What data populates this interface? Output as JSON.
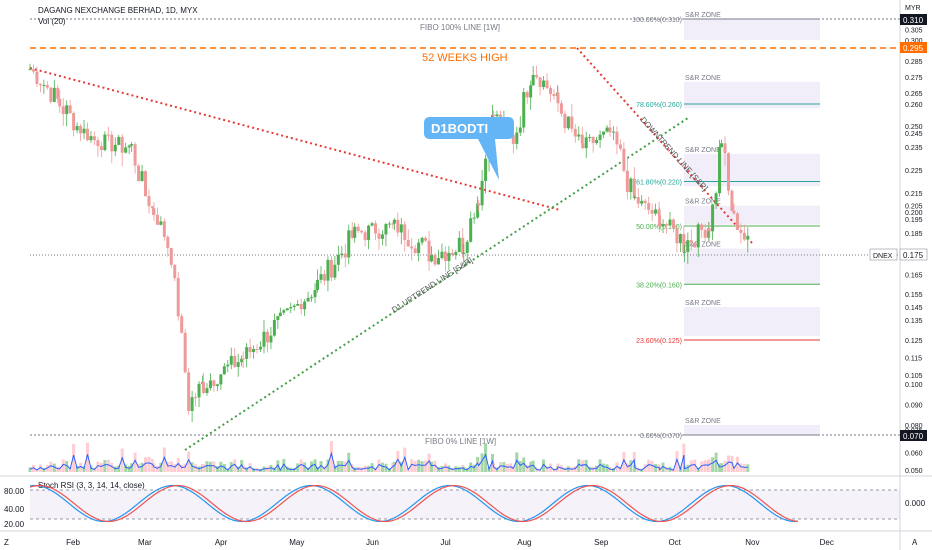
{
  "header": {
    "symbol_title": "DAGANG NEXCHANGE BERHAD, 1D, MYX",
    "vol_label": "Vol (20)",
    "currency": "MYR"
  },
  "annotations": {
    "week52_high": "52 WEEKS HIGH",
    "callout": "D1BODTI",
    "fibo100": "FIBO 100% LINE [1W]",
    "fibo0": "FIBO 0% LINE [1W]",
    "uptrend": "D1 UPTREND LINE [S&R]",
    "downtrend": "DOWNTREND LINE [S&R]",
    "sr_zone": "S&R ZONE"
  },
  "price_axis": {
    "ticks": [
      "0.305",
      "0.300",
      "0.285",
      "0.275",
      "0.265",
      "0.260",
      "0.250",
      "0.245",
      "0.235",
      "0.225",
      "0.215",
      "0.205",
      "0.200",
      "0.195",
      "0.185",
      "0.175",
      "0.165",
      "0.155",
      "0.145",
      "0.135",
      "0.125",
      "0.115",
      "0.105",
      "0.100",
      "0.090",
      "0.080",
      "0.075",
      "0.070",
      "0.060",
      "0.050"
    ],
    "tick_values": [
      0.305,
      0.3,
      0.285,
      0.275,
      0.265,
      0.26,
      0.25,
      0.245,
      0.235,
      0.225,
      0.215,
      0.205,
      0.2,
      0.195,
      0.185,
      0.175,
      0.165,
      0.155,
      0.145,
      0.135,
      0.125,
      0.115,
      0.105,
      0.1,
      0.09,
      0.08,
      0.075,
      0.07,
      0.06,
      0.05
    ],
    "badge_high": "0.310",
    "badge_52w": "0.295",
    "badge_dnex_label": "DNEX",
    "badge_dnex": "0.175",
    "badge_low": "0.070"
  },
  "fib_levels": [
    {
      "label": "100.00%(0.310)",
      "value": 0.31,
      "color": "#787b86"
    },
    {
      "label": "78.60%(0.260)",
      "value": 0.26,
      "color": "#26a69a"
    },
    {
      "label": "61.80%(0.220)",
      "value": 0.22,
      "color": "#26a69a"
    },
    {
      "label": "50.00%(0.190)",
      "value": 0.19,
      "color": "#4caf50"
    },
    {
      "label": "38.20%(0.160)",
      "value": 0.16,
      "color": "#4caf50"
    },
    {
      "label": "23.60%(0.125)",
      "value": 0.125,
      "color": "#e53935"
    },
    {
      "label": "0.00%(0.070)",
      "value": 0.07,
      "color": "#787b86"
    }
  ],
  "sr_zones": [
    {
      "top": 0.31,
      "bottom": 0.3
    },
    {
      "top": 0.272,
      "bottom": 0.258
    },
    {
      "top": 0.232,
      "bottom": 0.218
    },
    {
      "top": 0.205,
      "bottom": 0.191
    },
    {
      "top": 0.178,
      "bottom": 0.16
    },
    {
      "top": 0.145,
      "bottom": 0.127
    },
    {
      "top": 0.08,
      "bottom": 0.07
    }
  ],
  "stoch": {
    "label": "Stoch RSI (3, 3, 14, 14, close)",
    "ticks": [
      "80.00",
      "40.00",
      "20.00"
    ],
    "tick_values": [
      80,
      40,
      20
    ],
    "right_value": "0.000"
  },
  "x_axis": {
    "months": [
      "Feb",
      "Mar",
      "Apr",
      "May",
      "Jun",
      "Jul",
      "Aug",
      "Sep",
      "Oct",
      "Nov",
      "Dec"
    ]
  },
  "footer": {
    "z_label": "Z",
    "a_label": "A"
  },
  "colors": {
    "up": "#4caf50",
    "down": "#ef9a9a",
    "orange": "#ff6d00",
    "badge_blue": "#131722",
    "callout": "#64b5f6"
  },
  "chart_data": {
    "type": "candlestick",
    "title": "DAGANG NEXCHANGE BERHAD, 1D, MYX",
    "currency": "MYR",
    "ylim": [
      0.05,
      0.31
    ],
    "date_range": [
      "2020-01-15",
      "2020-11-01"
    ],
    "week52_high": 0.295,
    "last_price": 0.175,
    "low": 0.07,
    "high": 0.31,
    "price_path": [
      {
        "date": "2020-01-15",
        "close": 0.28
      },
      {
        "date": "2020-01-27",
        "close": 0.26
      },
      {
        "date": "2020-02-10",
        "close": 0.24
      },
      {
        "date": "2020-02-25",
        "close": 0.235
      },
      {
        "date": "2020-03-05",
        "close": 0.2
      },
      {
        "date": "2020-03-12",
        "close": 0.175
      },
      {
        "date": "2020-03-19",
        "close": 0.09
      },
      {
        "date": "2020-03-25",
        "close": 0.1
      },
      {
        "date": "2020-04-10",
        "close": 0.115
      },
      {
        "date": "2020-04-25",
        "close": 0.135
      },
      {
        "date": "2020-05-10",
        "close": 0.16
      },
      {
        "date": "2020-05-25",
        "close": 0.185
      },
      {
        "date": "2020-06-10",
        "close": 0.19
      },
      {
        "date": "2020-06-25",
        "close": 0.175
      },
      {
        "date": "2020-07-08",
        "close": 0.18
      },
      {
        "date": "2020-07-14",
        "close": 0.21
      },
      {
        "date": "2020-07-20",
        "close": 0.255
      },
      {
        "date": "2020-07-28",
        "close": 0.24
      },
      {
        "date": "2020-08-05",
        "close": 0.28
      },
      {
        "date": "2020-08-15",
        "close": 0.26
      },
      {
        "date": "2020-08-25",
        "close": 0.235
      },
      {
        "date": "2020-09-05",
        "close": 0.245
      },
      {
        "date": "2020-09-15",
        "close": 0.21
      },
      {
        "date": "2020-09-25",
        "close": 0.195
      },
      {
        "date": "2020-10-05",
        "close": 0.18
      },
      {
        "date": "2020-10-15",
        "close": 0.19
      },
      {
        "date": "2020-10-20",
        "close": 0.24
      },
      {
        "date": "2020-10-25",
        "close": 0.195
      },
      {
        "date": "2020-11-01",
        "close": 0.175
      }
    ]
  }
}
